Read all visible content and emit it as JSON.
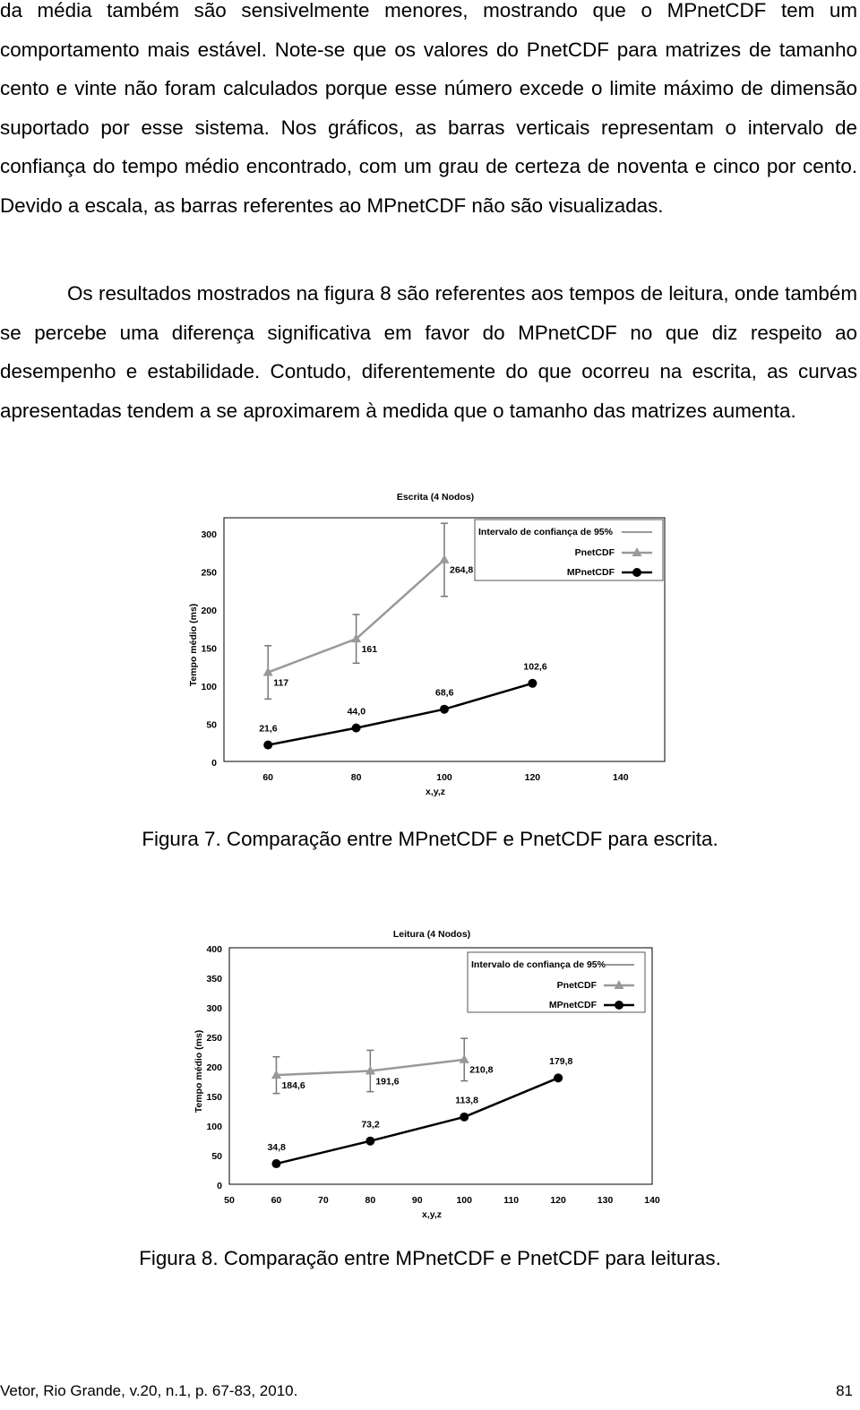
{
  "paragraphs": [
    "da média também são sensivelmente menores, mostrando que o MPnetCDF tem um comportamento mais estável. Note-se que os valores do PnetCDF para matrizes de tamanho cento e vinte não foram calculados porque esse número excede o limite máximo de dimensão suportado por esse sistema. Nos gráficos, as barras verticais representam o intervalo de confiança do tempo médio encontrado, com um grau de certeza de noventa e cinco por cento. Devido a escala, as barras referentes ao MPnetCDF não são visualizadas.",
    "Os resultados mostrados na figura 8 são referentes aos tempos de leitura, onde também se percebe uma diferença significativa em favor do MPnetCDF no que diz respeito ao desempenho e estabilidade. Contudo, diferentemente do que ocorreu na escrita, as curvas apresentadas tendem a se aproximarem à medida que o tamanho das matrizes aumenta."
  ],
  "captions": [
    "Figura 7. Comparação entre MPnetCDF e PnetCDF para escrita.",
    "Figura 8. Comparação entre MPnetCDF e PnetCDF para leituras."
  ],
  "footer": {
    "left": "Vetor, Rio Grande, v.20, n.1, p. 67-83, 2010.",
    "right": "81"
  },
  "chart_data": [
    {
      "type": "line",
      "title": "Escrita (4 Nodos)",
      "x_label": "x,y,z",
      "y_label": "Tempo médio (ms)",
      "errorbar_label": "Intervalo de confiança de 95%",
      "legend": "upper right",
      "grid": false,
      "xlim": [
        50,
        150
      ],
      "xticks": [
        60,
        80,
        100,
        120,
        140
      ],
      "ylim": [
        0,
        320
      ],
      "yticks": [
        0,
        50,
        100,
        150,
        200,
        250,
        300
      ],
      "series": [
        {
          "name": "PnetCDF",
          "color": "#999999",
          "marker": "triangle",
          "x": [
            60,
            80,
            100
          ],
          "values": [
            117,
            161,
            264.8
          ],
          "value_labels": [
            "117",
            "161",
            "264,8"
          ],
          "errors": [
            35,
            32,
            48
          ]
        },
        {
          "name": "MPnetCDF",
          "color": "#000000",
          "marker": "circle",
          "x": [
            60,
            80,
            100,
            120
          ],
          "values": [
            21.6,
            44.0,
            68.6,
            102.6
          ],
          "value_labels": [
            "21,6",
            "44,0",
            "68,6",
            "102,6"
          ]
        }
      ]
    },
    {
      "type": "line",
      "title": "Leitura (4 Nodos)",
      "x_label": "x,y,z",
      "y_label": "Tempo médio (ms)",
      "errorbar_label": "Intervalo de confiança de 95%",
      "legend": "upper right",
      "grid": false,
      "xlim": [
        50,
        140
      ],
      "xticks": [
        50,
        60,
        70,
        80,
        90,
        100,
        110,
        120,
        130,
        140
      ],
      "ylim": [
        0,
        400
      ],
      "yticks": [
        0,
        50,
        100,
        150,
        200,
        250,
        300,
        350,
        400
      ],
      "series": [
        {
          "name": "PnetCDF",
          "color": "#999999",
          "marker": "triangle",
          "x": [
            60,
            80,
            100
          ],
          "values": [
            184.6,
            191.6,
            210.8
          ],
          "value_labels": [
            "184,6",
            "191,6",
            "210,8"
          ],
          "errors": [
            31,
            35,
            36
          ]
        },
        {
          "name": "MPnetCDF",
          "color": "#000000",
          "marker": "circle",
          "x": [
            60,
            80,
            100,
            120
          ],
          "values": [
            34.8,
            73.2,
            113.8,
            179.8
          ],
          "value_labels": [
            "34,8",
            "73,2",
            "113,8",
            "179,8"
          ]
        }
      ]
    }
  ]
}
